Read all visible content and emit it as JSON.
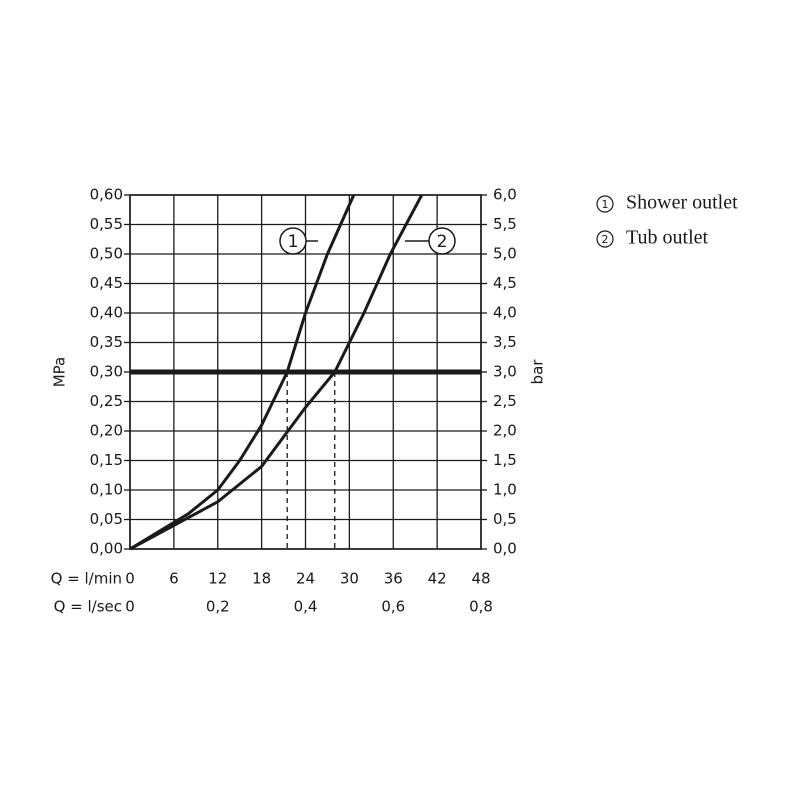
{
  "chart_data": {
    "type": "line",
    "x_label": "Q = l/min",
    "x2_label": "Q = l/sec",
    "y_label": "MPa",
    "y2_label": "bar",
    "xlim": [
      0,
      48
    ],
    "xticks": [
      0,
      6,
      12,
      18,
      24,
      30,
      36,
      42,
      48
    ],
    "x2lim": [
      0,
      0.8
    ],
    "x2ticks": [
      0,
      {
        "value": 0.2,
        "label": "0,2"
      },
      {
        "value": 0.4,
        "label": "0,4"
      },
      {
        "value": 0.6,
        "label": "0,6"
      },
      {
        "value": 0.8,
        "label": "0,8"
      }
    ],
    "ylim": [
      0,
      0.6
    ],
    "yticks": [
      {
        "value": 0,
        "label": "0,00"
      },
      {
        "value": 0.05,
        "label": "0,05"
      },
      {
        "value": 0.1,
        "label": "0,10"
      },
      {
        "value": 0.15,
        "label": "0,15"
      },
      {
        "value": 0.2,
        "label": "0,20"
      },
      {
        "value": 0.25,
        "label": "0,25"
      },
      {
        "value": 0.3,
        "label": "0,30"
      },
      {
        "value": 0.35,
        "label": "0,35"
      },
      {
        "value": 0.4,
        "label": "0,40"
      },
      {
        "value": 0.45,
        "label": "0,45"
      },
      {
        "value": 0.5,
        "label": "0,50"
      },
      {
        "value": 0.55,
        "label": "0,55"
      },
      {
        "value": 0.6,
        "label": "0,60"
      }
    ],
    "y2lim": [
      0,
      6
    ],
    "y2ticks": [
      {
        "value": 0,
        "label": "0,0"
      },
      {
        "value": 0.5,
        "label": "0,5"
      },
      {
        "value": 1,
        "label": "1,0"
      },
      {
        "value": 1.5,
        "label": "1,5"
      },
      {
        "value": 2,
        "label": "2,0"
      },
      {
        "value": 2.5,
        "label": "2,5"
      },
      {
        "value": 3,
        "label": "3,0"
      },
      {
        "value": 3.5,
        "label": "3,5"
      },
      {
        "value": 4,
        "label": "4,0"
      },
      {
        "value": 4.5,
        "label": "4,5"
      },
      {
        "value": 5,
        "label": "5,0"
      },
      {
        "value": 5.5,
        "label": "5,5"
      },
      {
        "value": 6,
        "label": "6,0"
      }
    ],
    "grid": true,
    "threshold": 0.3,
    "reference_x": [
      21.5,
      28
    ],
    "series": [
      {
        "name": "Shower outlet",
        "label": "1",
        "color": "#1a1a1a",
        "x": [
          0,
          4,
          8,
          12,
          15,
          18,
          21.5,
          24,
          27,
          30.6
        ],
        "values": [
          0,
          0.03,
          0.06,
          0.1,
          0.15,
          0.21,
          0.3,
          0.4,
          0.5,
          0.6
        ]
      },
      {
        "name": "Tub outlet",
        "label": "2",
        "color": "#1a1a1a",
        "x": [
          0,
          6,
          12,
          18,
          21,
          24,
          28,
          32,
          35.6,
          39.9
        ],
        "values": [
          0,
          0.04,
          0.08,
          0.14,
          0.19,
          0.24,
          0.3,
          0.4,
          0.5,
          0.6
        ]
      }
    ]
  }
}
